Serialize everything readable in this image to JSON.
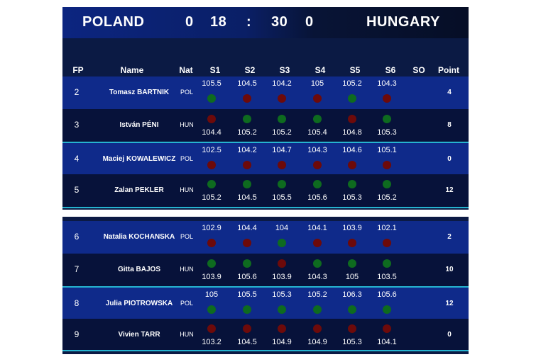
{
  "scoreboard": {
    "team_left": "POLAND",
    "score_left_a": "0",
    "score_left_b": "18",
    "separator": ":",
    "score_right_a": "30",
    "score_right_b": "0",
    "team_right": "HUNGARY"
  },
  "columns": {
    "fp": "FP",
    "name": "Name",
    "nat": "Nat",
    "s1": "S1",
    "s2": "S2",
    "s3": "S3",
    "s4": "S4",
    "s5": "S5",
    "s6": "S6",
    "so": "SO",
    "point": "Point"
  },
  "colors": {
    "hit": "#0e6b1f",
    "miss": "#6d0a0a",
    "accent": "#26b3cf"
  },
  "rows_top": [
    {
      "fp": "2",
      "name": "Tomasz BARTNIK",
      "nat": "POL",
      "point": "4",
      "values": [
        "105.5",
        "104.5",
        "104.2",
        "105",
        "105.2",
        "104.3"
      ],
      "hits": [
        true,
        false,
        false,
        false,
        true,
        false
      ],
      "value_pos": "above"
    },
    {
      "fp": "3",
      "name": "István PÉNI",
      "nat": "HUN",
      "point": "8",
      "values": [
        "104.4",
        "105.2",
        "105.2",
        "105.4",
        "104.8",
        "105.3"
      ],
      "hits": [
        false,
        true,
        true,
        true,
        false,
        true
      ],
      "value_pos": "below"
    },
    {
      "fp": "4",
      "name": "Maciej KOWALEWICZ",
      "nat": "POL",
      "point": "0",
      "values": [
        "102.5",
        "104.2",
        "104.7",
        "104.3",
        "104.6",
        "105.1"
      ],
      "hits": [
        false,
        false,
        false,
        false,
        false,
        false
      ],
      "value_pos": "above"
    },
    {
      "fp": "5",
      "name": "Zalan PEKLER",
      "nat": "HUN",
      "point": "12",
      "values": [
        "105.2",
        "104.5",
        "105.5",
        "105.6",
        "105.3",
        "105.2"
      ],
      "hits": [
        true,
        true,
        true,
        true,
        true,
        true
      ],
      "value_pos": "below"
    }
  ],
  "rows_bottom": [
    {
      "fp": "6",
      "name": "Natalia KOCHANSKA",
      "nat": "POL",
      "point": "2",
      "values": [
        "102.9",
        "104.4",
        "104",
        "104.1",
        "103.9",
        "102.1"
      ],
      "hits": [
        false,
        false,
        true,
        false,
        false,
        false
      ],
      "value_pos": "above"
    },
    {
      "fp": "7",
      "name": "Gitta BAJOS",
      "nat": "HUN",
      "point": "10",
      "values": [
        "103.9",
        "105.6",
        "103.9",
        "104.3",
        "105",
        "103.5"
      ],
      "hits": [
        true,
        true,
        false,
        true,
        true,
        true
      ],
      "value_pos": "below"
    },
    {
      "fp": "8",
      "name": "Julia PIOTROWSKA",
      "nat": "POL",
      "point": "12",
      "values": [
        "105",
        "105.5",
        "105.3",
        "105.2",
        "106.3",
        "105.6"
      ],
      "hits": [
        true,
        true,
        true,
        true,
        true,
        true
      ],
      "value_pos": "above"
    },
    {
      "fp": "9",
      "name": "Vivien TARR",
      "nat": "HUN",
      "point": "0",
      "values": [
        "103.2",
        "104.5",
        "104.9",
        "104.9",
        "105.3",
        "104.1"
      ],
      "hits": [
        false,
        false,
        false,
        false,
        false,
        false
      ],
      "value_pos": "below"
    }
  ]
}
